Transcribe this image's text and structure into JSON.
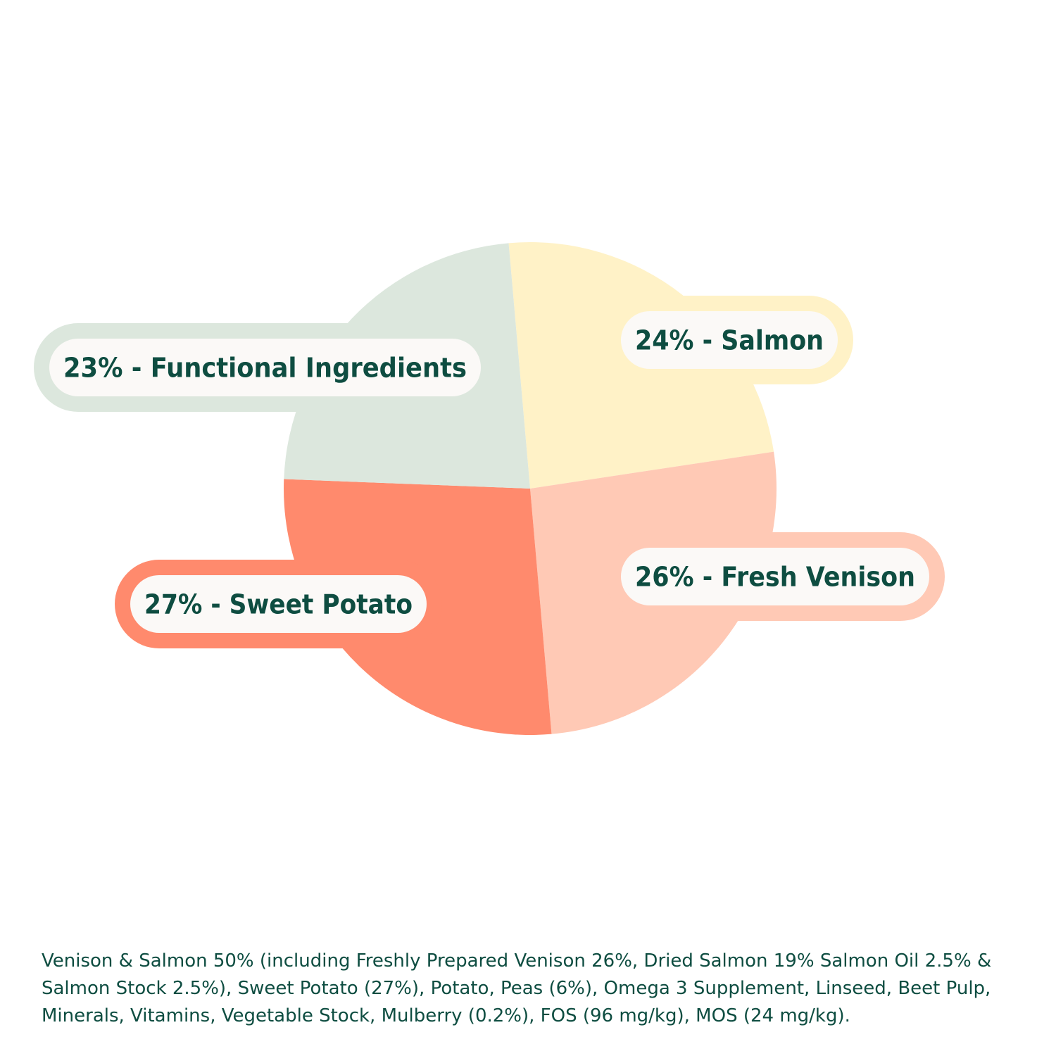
{
  "chart_data": {
    "type": "pie",
    "title": "",
    "slices": [
      {
        "label": "24% - Salmon",
        "value": 24,
        "color": "#fff2c7"
      },
      {
        "label": "26% - Fresh Venison",
        "value": 26,
        "color": "#ffc9b5"
      },
      {
        "label": "27% - Sweet Potato",
        "value": 27,
        "color": "#ff8a6d"
      },
      {
        "label": "23% - Functional Ingredients",
        "value": 23,
        "color": "#dce7dd"
      }
    ]
  },
  "colors": {
    "text": "#0e4d41",
    "pill_inner": "#fbf9f7"
  },
  "ingredients_text": "Venison & Salmon 50% (including Freshly Prepared Venison 26%, Dried Salmon 19% Salmon Oil 2.5% & Salmon Stock 2.5%), Sweet Potato (27%), Potato, Peas (6%), Omega 3 Supplement, Linseed, Beet Pulp, Minerals, Vitamins, Vegetable Stock, Mulberry (0.2%), FOS (96 mg/kg), MOS (24 mg/kg)."
}
